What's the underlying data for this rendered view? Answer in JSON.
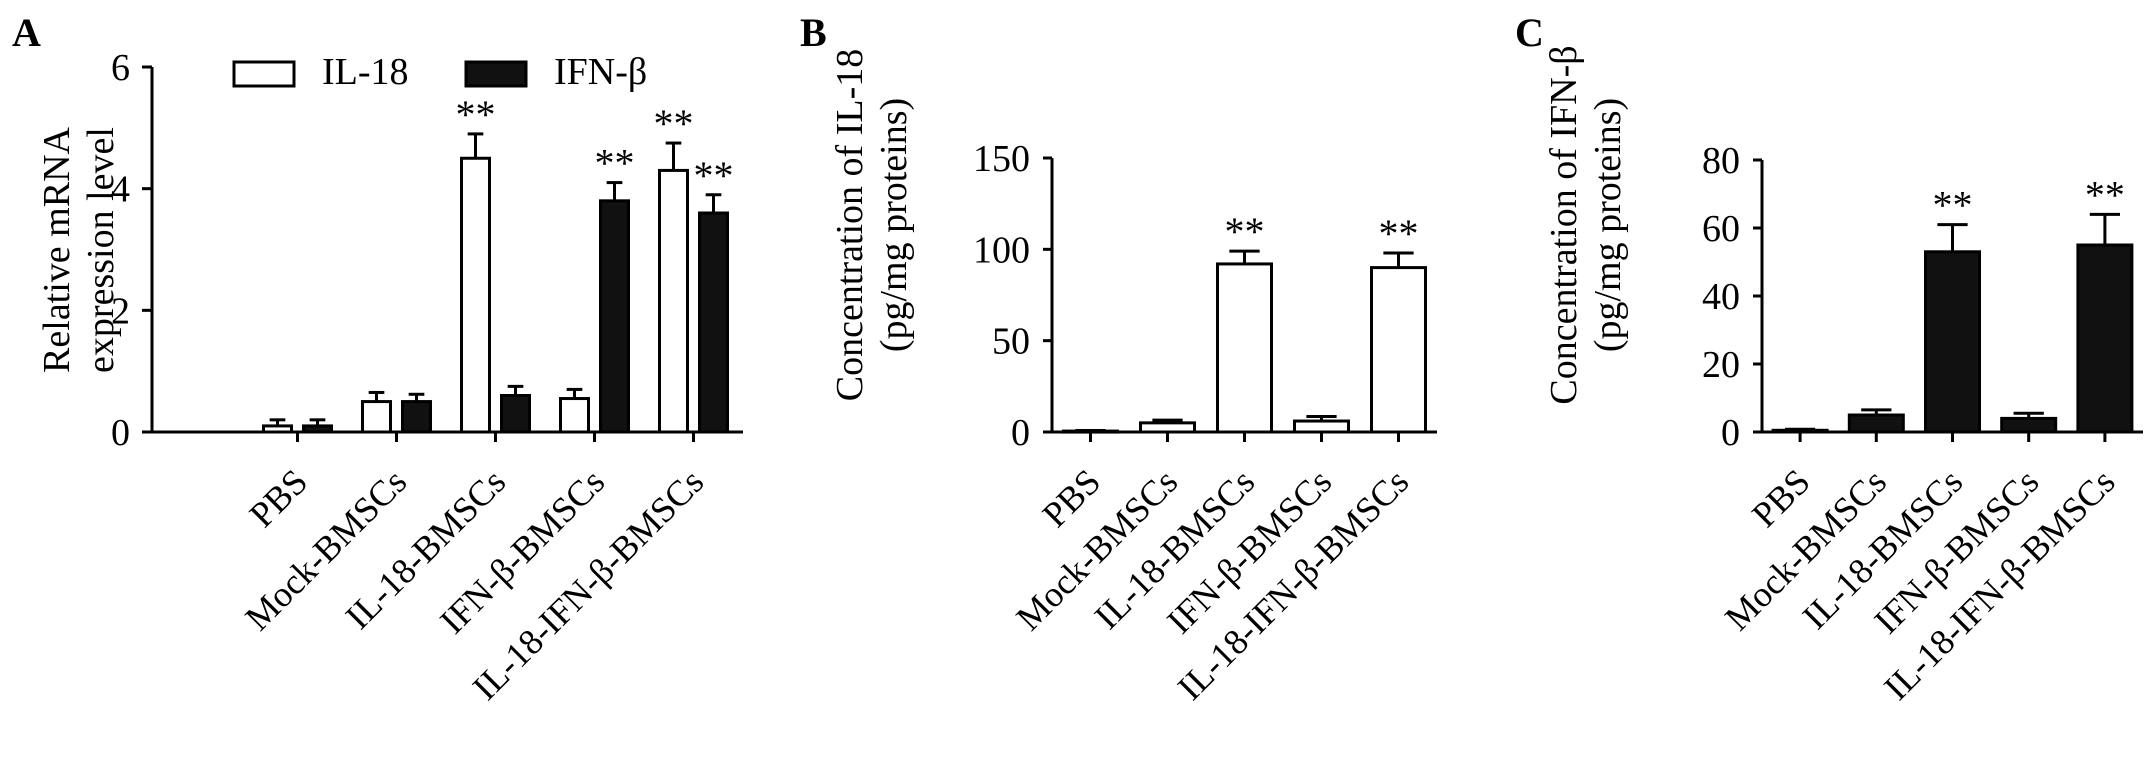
{
  "panels": [
    {
      "label": "A",
      "ylabel_lines": [
        "Relative mRNA",
        "expression level"
      ]
    },
    {
      "label": "B",
      "ylabel_lines": [
        "Concentration of IL-18",
        "(pg/mg proteins)"
      ]
    },
    {
      "label": "C",
      "ylabel_lines": [
        "Concentration of IFN-β",
        "(pg/mg proteins)"
      ]
    }
  ],
  "significance_mark": "**",
  "colors": {
    "open_fill": "#ffffff",
    "filled": "#111111",
    "stroke": "#000000"
  },
  "chart_data": [
    {
      "type": "bar",
      "panel": "A",
      "categories": [
        "PBS",
        "Mock-BMSCs",
        "IL-18-BMSCs",
        "IFN-β-BMSCs",
        "IL-18-IFN-β-BMSCs"
      ],
      "ylabel": "Relative mRNA expression level",
      "ylim": [
        0,
        6
      ],
      "yticks": [
        0,
        2,
        4,
        6
      ],
      "legend": "top-left",
      "series": [
        {
          "name": "IL-18",
          "style": "open",
          "values": [
            0.1,
            0.5,
            4.5,
            0.55,
            4.3
          ],
          "errors": [
            0.1,
            0.15,
            0.4,
            0.15,
            0.45
          ],
          "significance": [
            false,
            false,
            true,
            false,
            true
          ]
        },
        {
          "name": "IFN-β",
          "style": "filled",
          "values": [
            0.1,
            0.5,
            0.6,
            3.8,
            3.6
          ],
          "errors": [
            0.1,
            0.12,
            0.15,
            0.3,
            0.3
          ],
          "significance": [
            false,
            false,
            false,
            true,
            true
          ]
        }
      ]
    },
    {
      "type": "bar",
      "panel": "B",
      "categories": [
        "PBS",
        "Mock-BMSCs",
        "IL-18-BMSCs",
        "IFN-β-BMSCs",
        "IL-18-IFN-β-BMSCs"
      ],
      "ylabel": "Concentration of IL-18 (pg/mg proteins)",
      "ylim": [
        0,
        150
      ],
      "yticks": [
        0,
        50,
        100,
        150
      ],
      "series": [
        {
          "style": "open",
          "values": [
            0.5,
            5,
            92,
            6,
            90
          ],
          "errors": [
            0.3,
            1.5,
            7,
            2.5,
            8
          ],
          "significance": [
            false,
            false,
            true,
            false,
            true
          ]
        }
      ]
    },
    {
      "type": "bar",
      "panel": "C",
      "categories": [
        "PBS",
        "Mock-BMSCs",
        "IL-18-BMSCs",
        "IFN-β-BMSCs",
        "IL-18-IFN-β-BMSCs"
      ],
      "ylabel": "Concentration of IFN-β (pg/mg proteins)",
      "ylim": [
        0,
        80
      ],
      "yticks": [
        0,
        20,
        40,
        60,
        80
      ],
      "series": [
        {
          "style": "filled",
          "values": [
            0.5,
            5,
            53,
            4,
            55
          ],
          "errors": [
            0.3,
            1.5,
            8,
            1.5,
            9
          ],
          "significance": [
            false,
            false,
            true,
            false,
            true
          ]
        }
      ]
    }
  ]
}
